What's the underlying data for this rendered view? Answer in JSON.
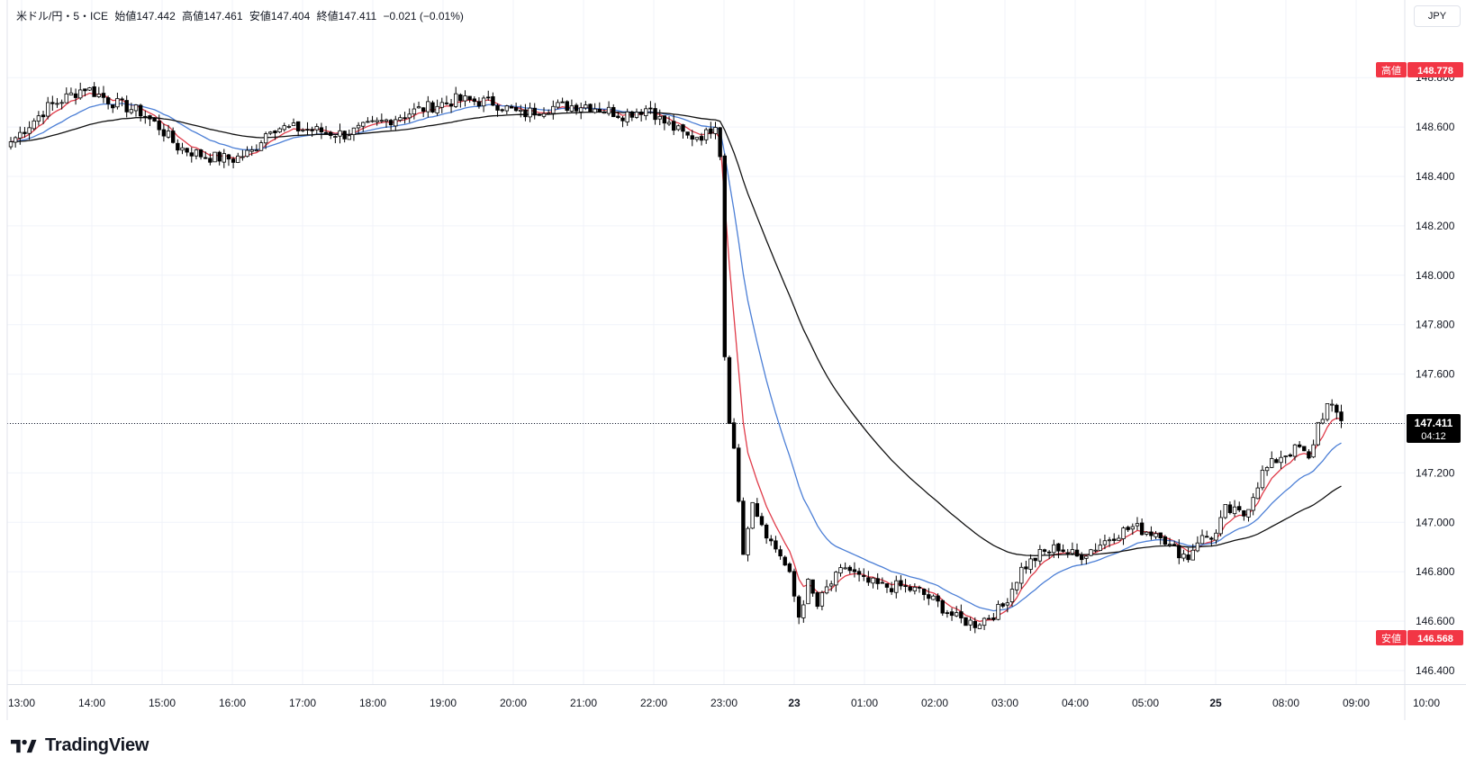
{
  "header": {
    "symbol": "米ドル/円・5・ICE",
    "open_label": "始値",
    "open": "147.442",
    "high_label": "高値",
    "high": "147.461",
    "low_label": "安値",
    "low": "147.404",
    "close_label": "終値",
    "close": "147.411",
    "change": "−0.021 (−0.01%)"
  },
  "currency": "JPY",
  "brand": "TradingView",
  "badges": {
    "high_label": "高値",
    "high_value": "148.778",
    "low_label": "安値",
    "low_value": "146.568",
    "last_price": "147.411",
    "countdown": "04:12"
  },
  "colors": {
    "up_candle": "#ffffff",
    "down_candle": "#000000",
    "candle_border": "#000000",
    "ma_fast": "#e03c4a",
    "ma_mid": "#4c7fd6",
    "ma_slow": "#111111",
    "badge_red": "#f23645",
    "last_price_bg": "#000000",
    "grid": "#f0f3fa"
  },
  "chart_data": {
    "type": "candlestick",
    "y_axis": {
      "ticks": [
        "146.400",
        "146.600",
        "146.800",
        "147.000",
        "147.200",
        "147.400",
        "147.600",
        "147.800",
        "148.000",
        "148.200",
        "148.400",
        "148.600",
        "148.800"
      ],
      "ylim": [
        146.35,
        148.87
      ]
    },
    "x_axis": {
      "ticks": [
        "13:00",
        "14:00",
        "15:00",
        "16:00",
        "17:00",
        "18:00",
        "19:00",
        "20:00",
        "21:00",
        "22:00",
        "23:00",
        "23",
        "01:00",
        "02:00",
        "03:00",
        "04:00",
        "05:00",
        "25",
        "08:00",
        "09:00",
        "10:00"
      ],
      "bold_ticks": [
        "23",
        "25"
      ]
    },
    "grid": true,
    "candle_anchors": [
      {
        "i": 0,
        "c": 148.54
      },
      {
        "i": 8,
        "c": 148.68
      },
      {
        "i": 16,
        "c": 148.76
      },
      {
        "i": 22,
        "c": 148.7
      },
      {
        "i": 28,
        "c": 148.66
      },
      {
        "i": 32,
        "c": 148.6
      },
      {
        "i": 36,
        "c": 148.52
      },
      {
        "i": 42,
        "c": 148.48
      },
      {
        "i": 48,
        "c": 148.47
      },
      {
        "i": 52,
        "c": 148.5
      },
      {
        "i": 56,
        "c": 148.6
      },
      {
        "i": 64,
        "c": 148.59
      },
      {
        "i": 72,
        "c": 148.57
      },
      {
        "i": 80,
        "c": 148.62
      },
      {
        "i": 88,
        "c": 148.67
      },
      {
        "i": 96,
        "c": 148.71
      },
      {
        "i": 104,
        "c": 148.7
      },
      {
        "i": 110,
        "c": 148.65
      },
      {
        "i": 116,
        "c": 148.68
      },
      {
        "i": 124,
        "c": 148.69
      },
      {
        "i": 132,
        "c": 148.65
      },
      {
        "i": 138,
        "c": 148.68
      },
      {
        "i": 140,
        "c": 148.63
      },
      {
        "i": 146,
        "c": 148.56
      },
      {
        "i": 150,
        "c": 148.57
      },
      {
        "i": 152,
        "c": 148.62
      },
      {
        "i": 153,
        "c": 148.48
      },
      {
        "i": 154,
        "c": 147.67
      },
      {
        "i": 155,
        "c": 147.4
      },
      {
        "i": 156,
        "c": 147.3
      },
      {
        "i": 158,
        "c": 146.87
      },
      {
        "i": 160,
        "c": 147.08
      },
      {
        "i": 164,
        "c": 146.92
      },
      {
        "i": 166,
        "c": 146.87
      },
      {
        "i": 168,
        "c": 146.78
      },
      {
        "i": 170,
        "c": 146.62
      },
      {
        "i": 172,
        "c": 146.75
      },
      {
        "i": 174,
        "c": 146.66
      },
      {
        "i": 176,
        "c": 146.73
      },
      {
        "i": 180,
        "c": 146.82
      },
      {
        "i": 184,
        "c": 146.76
      },
      {
        "i": 188,
        "c": 146.74
      },
      {
        "i": 192,
        "c": 146.74
      },
      {
        "i": 196,
        "c": 146.72
      },
      {
        "i": 200,
        "c": 146.67
      },
      {
        "i": 204,
        "c": 146.61
      },
      {
        "i": 208,
        "c": 146.59
      },
      {
        "i": 212,
        "c": 146.63
      },
      {
        "i": 214,
        "c": 146.66
      },
      {
        "i": 218,
        "c": 146.81
      },
      {
        "i": 222,
        "c": 146.87
      },
      {
        "i": 226,
        "c": 146.9
      },
      {
        "i": 230,
        "c": 146.86
      },
      {
        "i": 234,
        "c": 146.9
      },
      {
        "i": 238,
        "c": 146.95
      },
      {
        "i": 242,
        "c": 146.98
      },
      {
        "i": 246,
        "c": 146.96
      },
      {
        "i": 248,
        "c": 146.96
      },
      {
        "i": 250,
        "c": 146.9
      },
      {
        "i": 254,
        "c": 146.86
      },
      {
        "i": 256,
        "c": 146.93
      },
      {
        "i": 260,
        "c": 146.95
      },
      {
        "i": 262,
        "c": 147.05
      },
      {
        "i": 266,
        "c": 147.03
      },
      {
        "i": 270,
        "c": 147.2
      },
      {
        "i": 274,
        "c": 147.27
      },
      {
        "i": 278,
        "c": 147.3
      },
      {
        "i": 280,
        "c": 147.25
      },
      {
        "i": 282,
        "c": 147.4
      },
      {
        "i": 284,
        "c": 147.47
      },
      {
        "i": 286,
        "c": 147.44
      },
      {
        "i": 287,
        "c": 147.411
      }
    ],
    "high": 148.778,
    "low": 146.568,
    "last": 147.411,
    "series": [
      {
        "kind": "moving_average"
      },
      {
        "kind": "moving_average"
      },
      {
        "kind": "moving_average"
      }
    ]
  }
}
